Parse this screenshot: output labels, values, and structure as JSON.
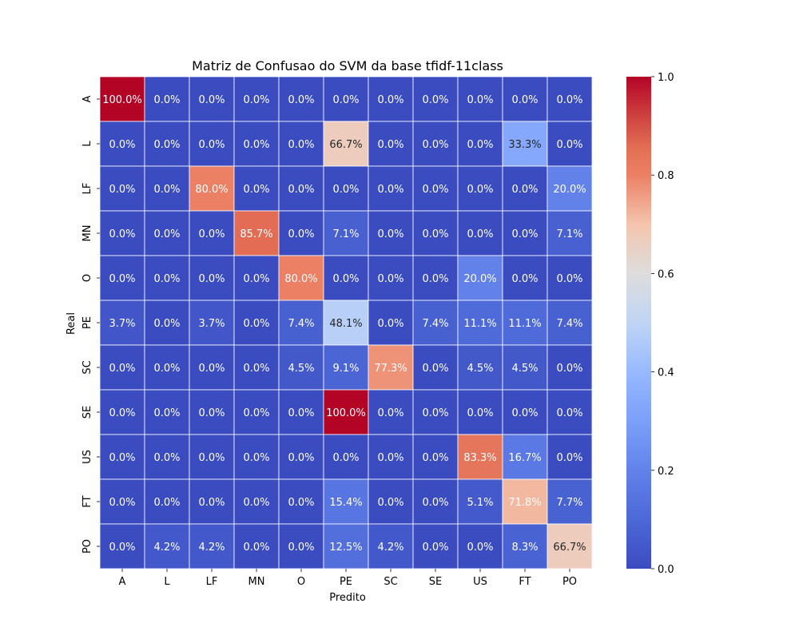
{
  "chart_data": {
    "type": "heatmap",
    "title": "Matriz de Confusao do SVM da base tfidf-11class",
    "xlabel": "Predito",
    "ylabel": "Real",
    "x_categories": [
      "A",
      "L",
      "LF",
      "MN",
      "O",
      "PE",
      "SC",
      "SE",
      "US",
      "FT",
      "PO"
    ],
    "y_categories": [
      "A",
      "L",
      "LF",
      "MN",
      "O",
      "PE",
      "SC",
      "SE",
      "US",
      "FT",
      "PO"
    ],
    "values": [
      [
        1.0,
        0.0,
        0.0,
        0.0,
        0.0,
        0.0,
        0.0,
        0.0,
        0.0,
        0.0,
        0.0
      ],
      [
        0.0,
        0.0,
        0.0,
        0.0,
        0.0,
        0.667,
        0.0,
        0.0,
        0.0,
        0.333,
        0.0
      ],
      [
        0.0,
        0.0,
        0.8,
        0.0,
        0.0,
        0.0,
        0.0,
        0.0,
        0.0,
        0.0,
        0.2
      ],
      [
        0.0,
        0.0,
        0.0,
        0.857,
        0.0,
        0.071,
        0.0,
        0.0,
        0.0,
        0.0,
        0.071
      ],
      [
        0.0,
        0.0,
        0.0,
        0.0,
        0.8,
        0.0,
        0.0,
        0.0,
        0.2,
        0.0,
        0.0
      ],
      [
        0.037,
        0.0,
        0.037,
        0.0,
        0.074,
        0.481,
        0.0,
        0.074,
        0.111,
        0.111,
        0.074
      ],
      [
        0.0,
        0.0,
        0.0,
        0.0,
        0.045,
        0.091,
        0.773,
        0.0,
        0.045,
        0.045,
        0.0
      ],
      [
        0.0,
        0.0,
        0.0,
        0.0,
        0.0,
        1.0,
        0.0,
        0.0,
        0.0,
        0.0,
        0.0
      ],
      [
        0.0,
        0.0,
        0.0,
        0.0,
        0.0,
        0.0,
        0.0,
        0.0,
        0.833,
        0.167,
        0.0
      ],
      [
        0.0,
        0.0,
        0.0,
        0.0,
        0.0,
        0.154,
        0.0,
        0.0,
        0.051,
        0.718,
        0.077
      ],
      [
        0.0,
        0.042,
        0.042,
        0.0,
        0.0,
        0.125,
        0.042,
        0.0,
        0.0,
        0.083,
        0.667
      ]
    ],
    "cell_labels": [
      [
        "100.0%",
        "0.0%",
        "0.0%",
        "0.0%",
        "0.0%",
        "0.0%",
        "0.0%",
        "0.0%",
        "0.0%",
        "0.0%",
        "0.0%"
      ],
      [
        "0.0%",
        "0.0%",
        "0.0%",
        "0.0%",
        "0.0%",
        "66.7%",
        "0.0%",
        "0.0%",
        "0.0%",
        "33.3%",
        "0.0%"
      ],
      [
        "0.0%",
        "0.0%",
        "80.0%",
        "0.0%",
        "0.0%",
        "0.0%",
        "0.0%",
        "0.0%",
        "0.0%",
        "0.0%",
        "20.0%"
      ],
      [
        "0.0%",
        "0.0%",
        "0.0%",
        "85.7%",
        "0.0%",
        "7.1%",
        "0.0%",
        "0.0%",
        "0.0%",
        "0.0%",
        "7.1%"
      ],
      [
        "0.0%",
        "0.0%",
        "0.0%",
        "0.0%",
        "80.0%",
        "0.0%",
        "0.0%",
        "0.0%",
        "20.0%",
        "0.0%",
        "0.0%"
      ],
      [
        "3.7%",
        "0.0%",
        "3.7%",
        "0.0%",
        "7.4%",
        "48.1%",
        "0.0%",
        "7.4%",
        "11.1%",
        "11.1%",
        "7.4%"
      ],
      [
        "0.0%",
        "0.0%",
        "0.0%",
        "0.0%",
        "4.5%",
        "9.1%",
        "77.3%",
        "0.0%",
        "4.5%",
        "4.5%",
        "0.0%"
      ],
      [
        "0.0%",
        "0.0%",
        "0.0%",
        "0.0%",
        "0.0%",
        "100.0%",
        "0.0%",
        "0.0%",
        "0.0%",
        "0.0%",
        "0.0%"
      ],
      [
        "0.0%",
        "0.0%",
        "0.0%",
        "0.0%",
        "0.0%",
        "0.0%",
        "0.0%",
        "0.0%",
        "83.3%",
        "16.7%",
        "0.0%"
      ],
      [
        "0.0%",
        "0.0%",
        "0.0%",
        "0.0%",
        "0.0%",
        "15.4%",
        "0.0%",
        "0.0%",
        "5.1%",
        "71.8%",
        "7.7%"
      ],
      [
        "0.0%",
        "4.2%",
        "4.2%",
        "0.0%",
        "0.0%",
        "12.5%",
        "4.2%",
        "0.0%",
        "0.0%",
        "8.3%",
        "66.7%"
      ]
    ],
    "colorbar": {
      "colormap": "coolwarm",
      "range": [
        0.0,
        1.0
      ],
      "ticks": [
        "0.0",
        "0.2",
        "0.4",
        "0.6",
        "0.8",
        "1.0"
      ]
    },
    "grid": false
  }
}
